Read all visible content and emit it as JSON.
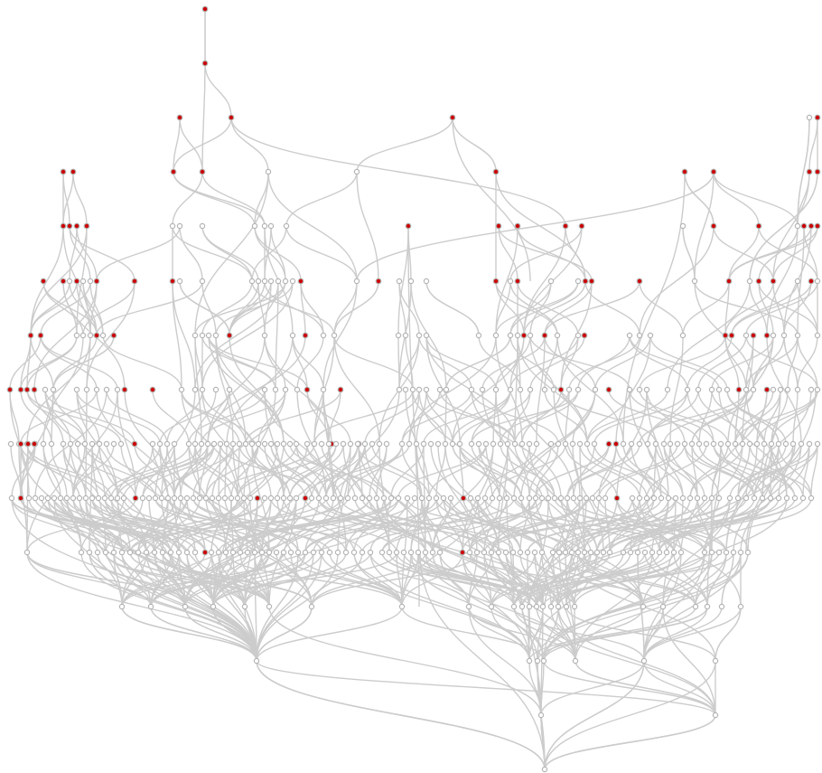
{
  "graph": {
    "type": "layered-directed-acyclic-graph",
    "root": "top",
    "sinks": "bottom",
    "colors": {
      "background": "#ffffff",
      "edge": "#cccccc",
      "node_fill": "#ffffff",
      "node_stroke": "#b4b4b4",
      "highlight_fill": "#cc0000"
    },
    "node_kinds": [
      "plain",
      "highlighted"
    ],
    "layer_count": 15,
    "labels_shown": false
  }
}
